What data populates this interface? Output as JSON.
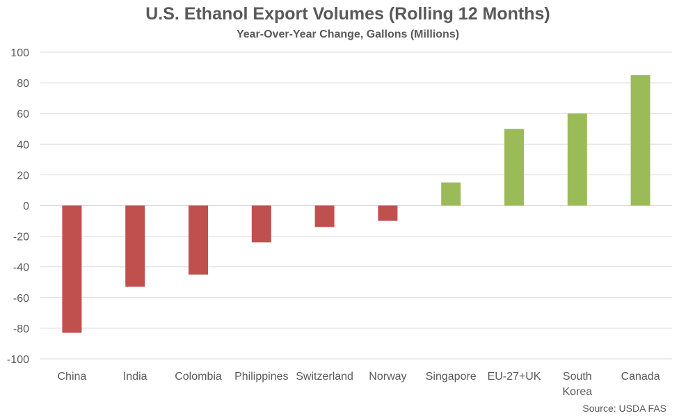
{
  "chart_data": {
    "type": "bar",
    "title": "U.S. Ethanol Export Volumes (Rolling 12 Months)",
    "subtitle": "Year-Over-Year Change, Gallons (Millions)",
    "xlabel": "",
    "ylabel": "",
    "categories": [
      "China",
      "India",
      "Colombia",
      "Philippines",
      "Switzerland",
      "Norway",
      "Singapore",
      "EU-27+UK",
      "South Korea",
      "Canada"
    ],
    "values": [
      -83,
      -53,
      -45,
      -24,
      -14,
      -10,
      15,
      50,
      60,
      85
    ],
    "ylim": [
      -100,
      100
    ],
    "yticks": [
      100,
      80,
      60,
      40,
      20,
      0,
      -20,
      -40,
      -60,
      -80,
      -100
    ],
    "grid": true,
    "legend": "none",
    "colors": {
      "negative": "#c0504d",
      "positive": "#9bbb59",
      "grid": "#d9d9d9",
      "text": "#595959"
    },
    "source": "Source: USDA FAS"
  }
}
